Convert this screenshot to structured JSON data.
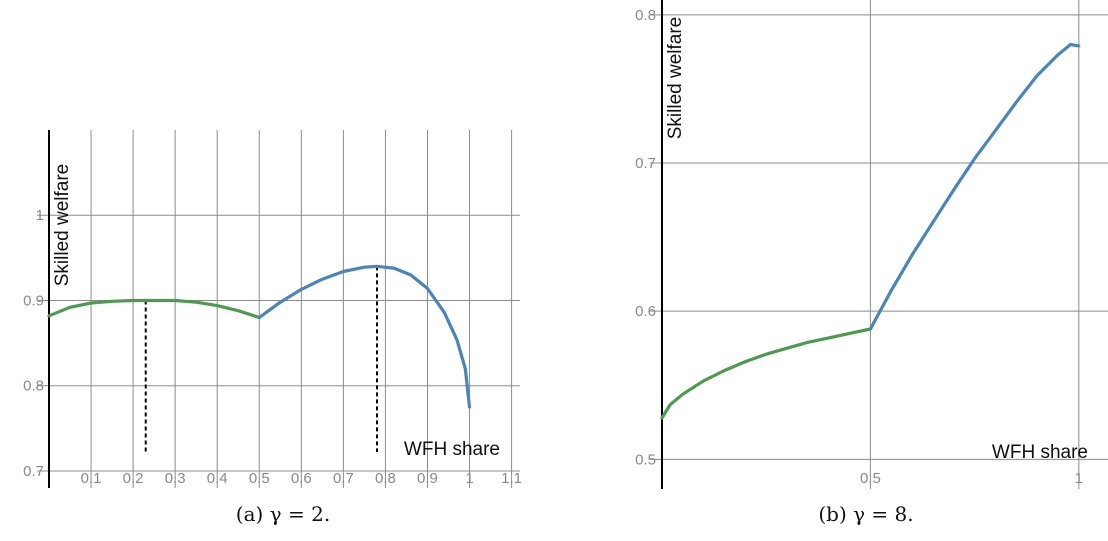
{
  "chart_data": [
    {
      "type": "line",
      "caption": "(a) γ = 2.",
      "xlabel": "WFH share",
      "ylabel": "Skilled welfare",
      "xlim": [
        0,
        1.12
      ],
      "ylim": [
        0.68,
        1.1
      ],
      "x_ticks": [
        "0.1",
        "0.2",
        "0.3",
        "0.4",
        "0.5",
        "0.6",
        "0.7",
        "0.8",
        "0.9",
        "1",
        "1.1"
      ],
      "y_ticks": [
        "0.7",
        "0.8",
        "0.9",
        "1"
      ],
      "grid": true,
      "colors": {
        "regime_low": "#4e9a51",
        "regime_high": "#4a84b8"
      },
      "series": [
        {
          "color": "#4e9a51",
          "x": [
            0,
            0.05,
            0.1,
            0.15,
            0.2,
            0.23,
            0.3,
            0.35,
            0.4,
            0.45,
            0.5
          ],
          "y": [
            0.882,
            0.892,
            0.897,
            0.899,
            0.9,
            0.9,
            0.9,
            0.898,
            0.894,
            0.888,
            0.88
          ]
        },
        {
          "color": "#4a84b8",
          "x": [
            0.5,
            0.55,
            0.6,
            0.65,
            0.7,
            0.75,
            0.78,
            0.82,
            0.86,
            0.9,
            0.94,
            0.97,
            0.99,
            1.0
          ],
          "y": [
            0.88,
            0.898,
            0.913,
            0.925,
            0.934,
            0.939,
            0.94,
            0.938,
            0.93,
            0.914,
            0.886,
            0.854,
            0.82,
            0.775
          ]
        }
      ],
      "markers": [
        {
          "x": 0.23,
          "y": 0.9
        },
        {
          "x": 0.78,
          "y": 0.94
        }
      ]
    },
    {
      "type": "line",
      "caption": "(b) γ = 8.",
      "xlabel": "WFH share",
      "ylabel": "Skilled welfare",
      "xlim": [
        0,
        1.07
      ],
      "ylim": [
        0.48,
        0.81
      ],
      "x_ticks": [
        "0.5",
        "1"
      ],
      "y_ticks": [
        "0.5",
        "0.6",
        "0.7",
        "0.8"
      ],
      "grid": true,
      "colors": {
        "regime_low": "#4e9a51",
        "regime_high": "#4a84b8"
      },
      "series": [
        {
          "color": "#4e9a51",
          "x": [
            0,
            0.02,
            0.05,
            0.1,
            0.15,
            0.2,
            0.25,
            0.3,
            0.35,
            0.4,
            0.45,
            0.5
          ],
          "y": [
            0.528,
            0.537,
            0.544,
            0.553,
            0.56,
            0.566,
            0.571,
            0.575,
            0.579,
            0.582,
            0.585,
            0.588
          ]
        },
        {
          "color": "#4a84b8",
          "x": [
            0.5,
            0.55,
            0.6,
            0.65,
            0.7,
            0.75,
            0.8,
            0.85,
            0.9,
            0.95,
            0.98,
            1.0
          ],
          "y": [
            0.588,
            0.614,
            0.638,
            0.66,
            0.682,
            0.703,
            0.722,
            0.741,
            0.759,
            0.773,
            0.78,
            0.779
          ]
        }
      ],
      "markers": []
    }
  ]
}
